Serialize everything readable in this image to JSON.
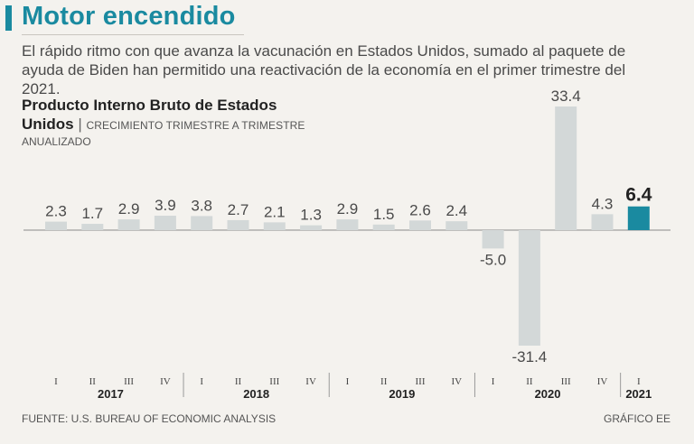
{
  "header": {
    "title": "Motor encendido",
    "lead": "El rápido ritmo con que avanza la vacunación en Estados Unidos, sumado al paquete de ayuda de Biden han permitido una reactivación de la economía en el primer trimestre del 2021."
  },
  "chart_data": {
    "type": "bar",
    "title": "Producto Interno Bruto de Estados Unidos",
    "subtitle": "CRECIMIENTO TRIMESTRE A TRIMESTRE ANUALIZADO",
    "title_line1": "Producto Interno Bruto de Estados",
    "title_line2": "Unidos",
    "subtitle_line1": "CRECIMIENTO TRIMESTRE A TRIMESTRE",
    "subtitle_line2": "ANUALIZADO",
    "categories": [
      "I",
      "II",
      "III",
      "IV",
      "I",
      "II",
      "III",
      "IV",
      "I",
      "II",
      "III",
      "IV",
      "I",
      "II",
      "III",
      "IV",
      "I"
    ],
    "years": [
      {
        "label": "2017",
        "quarters": 4
      },
      {
        "label": "2018",
        "quarters": 4
      },
      {
        "label": "2019",
        "quarters": 4
      },
      {
        "label": "2020",
        "quarters": 4
      },
      {
        "label": "2021",
        "quarters": 1
      }
    ],
    "values": [
      2.3,
      1.7,
      2.9,
      3.9,
      3.8,
      2.7,
      2.1,
      1.3,
      2.9,
      1.5,
      2.6,
      2.4,
      -5.0,
      -31.4,
      33.4,
      4.3,
      6.4
    ],
    "value_labels": [
      "2.3",
      "1.7",
      "2.9",
      "3.9",
      "3.8",
      "2.7",
      "2.1",
      "1.3",
      "2.9",
      "1.5",
      "2.6",
      "2.4",
      "-5.0",
      "-31.4",
      "33.4",
      "4.3",
      "6.4"
    ],
    "highlight_index": 16,
    "ylim": [
      -31.4,
      33.4
    ],
    "xlabel": "",
    "ylabel": "",
    "colors": {
      "bar": "#d3d8d8",
      "highlight": "#1a8aa0",
      "axis": "#8a8a8a"
    }
  },
  "footer": {
    "source": "FUENTE: U.S. BUREAU OF ECONOMIC ANALYSIS",
    "credit": "GRÁFICO EE"
  }
}
